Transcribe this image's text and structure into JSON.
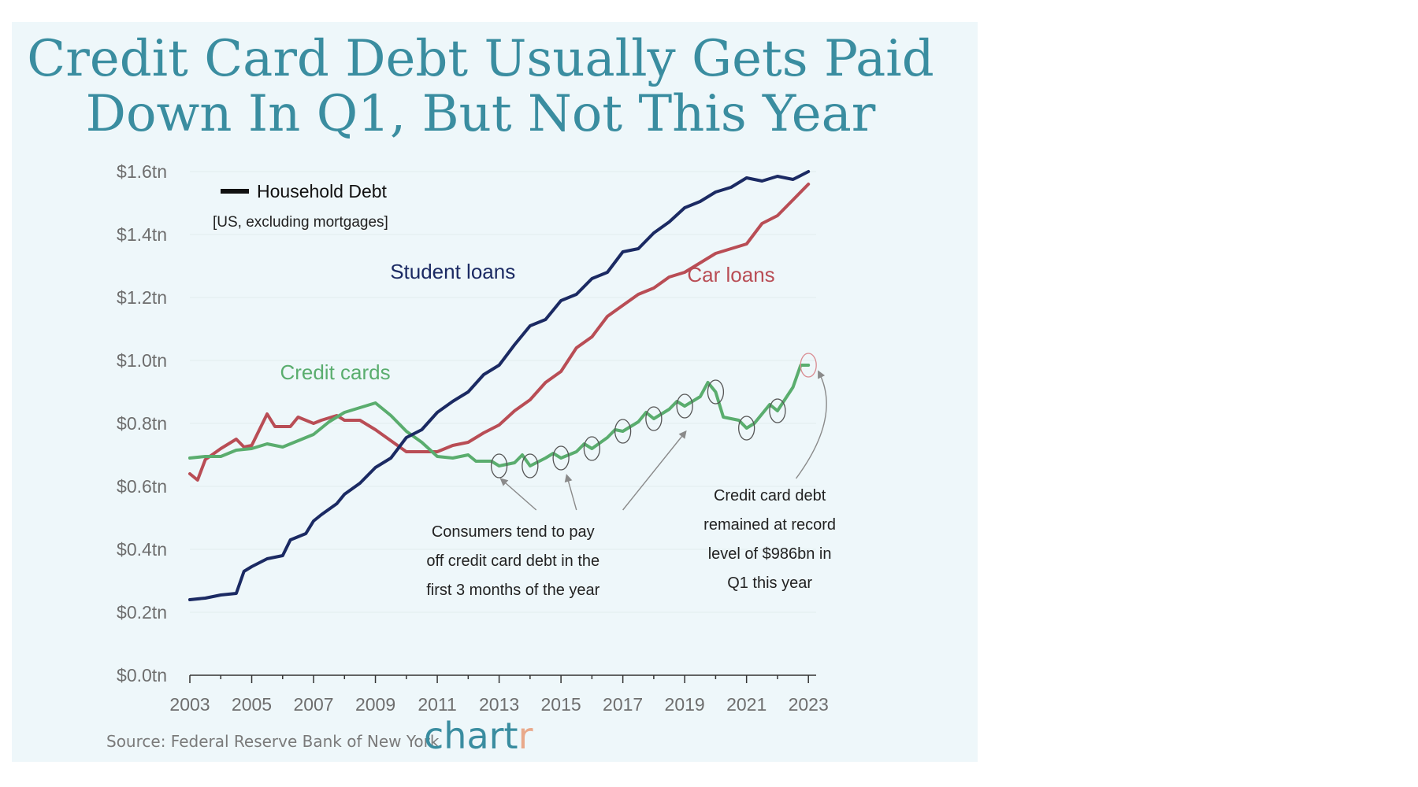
{
  "title": {
    "line1": "Credit Card Debt Usually Gets Paid",
    "line2": "Down In Q1, But Not This Year"
  },
  "footer": {
    "source": "Source: Federal Reserve Bank of New York",
    "brand_main": "chart",
    "brand_accent": "r"
  },
  "colors": {
    "background": "#eef7fa",
    "title": "#3a8da0",
    "student_loans": "#1b2a63",
    "car_loans": "#b94d55",
    "credit_cards": "#5aad6e",
    "grid": "#e3ecef"
  },
  "chart_data": {
    "type": "line",
    "legend": {
      "title": "Household Debt",
      "subtitle": "[US, excluding mortgages]",
      "placement": "top-left"
    },
    "ylim": [
      0,
      1.6
    ],
    "xlim": [
      2003,
      2023.25
    ],
    "y_ticks": [
      {
        "value": 0.0,
        "label": "$0.0tn"
      },
      {
        "value": 0.2,
        "label": "$0.2tn"
      },
      {
        "value": 0.4,
        "label": "$0.4tn"
      },
      {
        "value": 0.6,
        "label": "$0.6tn"
      },
      {
        "value": 0.8,
        "label": "$0.8tn"
      },
      {
        "value": 1.0,
        "label": "$1.0tn"
      },
      {
        "value": 1.2,
        "label": "$1.2tn"
      },
      {
        "value": 1.4,
        "label": "$1.4tn"
      },
      {
        "value": 1.6,
        "label": "$1.6tn"
      }
    ],
    "x_ticks": [
      "2003",
      "2005",
      "2007",
      "2009",
      "2011",
      "2013",
      "2015",
      "2017",
      "2019",
      "2021",
      "2023"
    ],
    "grid": true,
    "series": [
      {
        "name": "Student loans",
        "color": "#1b2a63",
        "points": [
          [
            2003,
            0.24
          ],
          [
            2003.5,
            0.245
          ],
          [
            2004,
            0.255
          ],
          [
            2004.5,
            0.26
          ],
          [
            2004.75,
            0.33
          ],
          [
            2005,
            0.345
          ],
          [
            2005.5,
            0.37
          ],
          [
            2006,
            0.38
          ],
          [
            2006.25,
            0.43
          ],
          [
            2006.75,
            0.45
          ],
          [
            2007,
            0.49
          ],
          [
            2007.25,
            0.51
          ],
          [
            2007.75,
            0.545
          ],
          [
            2008,
            0.575
          ],
          [
            2008.5,
            0.61
          ],
          [
            2009,
            0.66
          ],
          [
            2009.5,
            0.69
          ],
          [
            2010,
            0.755
          ],
          [
            2010.5,
            0.78
          ],
          [
            2011,
            0.835
          ],
          [
            2011.5,
            0.87
          ],
          [
            2012,
            0.9
          ],
          [
            2012.5,
            0.955
          ],
          [
            2013,
            0.985
          ],
          [
            2013.5,
            1.05
          ],
          [
            2014,
            1.11
          ],
          [
            2014.5,
            1.13
          ],
          [
            2015,
            1.19
          ],
          [
            2015.5,
            1.21
          ],
          [
            2016,
            1.26
          ],
          [
            2016.5,
            1.28
          ],
          [
            2017,
            1.345
          ],
          [
            2017.5,
            1.355
          ],
          [
            2018,
            1.405
          ],
          [
            2018.5,
            1.44
          ],
          [
            2019,
            1.485
          ],
          [
            2019.5,
            1.505
          ],
          [
            2020,
            1.535
          ],
          [
            2020.5,
            1.55
          ],
          [
            2021,
            1.58
          ],
          [
            2021.5,
            1.57
          ],
          [
            2022,
            1.585
          ],
          [
            2022.5,
            1.575
          ],
          [
            2023,
            1.6
          ]
        ]
      },
      {
        "name": "Car loans",
        "color": "#b94d55",
        "points": [
          [
            2003,
            0.64
          ],
          [
            2003.25,
            0.62
          ],
          [
            2003.5,
            0.685
          ],
          [
            2004,
            0.72
          ],
          [
            2004.5,
            0.75
          ],
          [
            2004.75,
            0.725
          ],
          [
            2005,
            0.73
          ],
          [
            2005.5,
            0.83
          ],
          [
            2005.75,
            0.79
          ],
          [
            2006.25,
            0.79
          ],
          [
            2006.5,
            0.82
          ],
          [
            2007,
            0.8
          ],
          [
            2007.25,
            0.81
          ],
          [
            2007.75,
            0.825
          ],
          [
            2008,
            0.81
          ],
          [
            2008.5,
            0.81
          ],
          [
            2009,
            0.78
          ],
          [
            2009.5,
            0.745
          ],
          [
            2010,
            0.71
          ],
          [
            2010.5,
            0.71
          ],
          [
            2011,
            0.71
          ],
          [
            2011.5,
            0.73
          ],
          [
            2012,
            0.74
          ],
          [
            2012.5,
            0.77
          ],
          [
            2013,
            0.795
          ],
          [
            2013.5,
            0.84
          ],
          [
            2014,
            0.875
          ],
          [
            2014.5,
            0.93
          ],
          [
            2015,
            0.965
          ],
          [
            2015.5,
            1.04
          ],
          [
            2016,
            1.075
          ],
          [
            2016.5,
            1.14
          ],
          [
            2017,
            1.175
          ],
          [
            2017.5,
            1.21
          ],
          [
            2018,
            1.23
          ],
          [
            2018.5,
            1.265
          ],
          [
            2019,
            1.28
          ],
          [
            2019.5,
            1.31
          ],
          [
            2020,
            1.34
          ],
          [
            2020.5,
            1.355
          ],
          [
            2021,
            1.37
          ],
          [
            2021.5,
            1.435
          ],
          [
            2022,
            1.46
          ],
          [
            2022.5,
            1.51
          ],
          [
            2023,
            1.56
          ]
        ]
      },
      {
        "name": "Credit cards",
        "color": "#5aad6e",
        "points": [
          [
            2003,
            0.69
          ],
          [
            2003.5,
            0.695
          ],
          [
            2004,
            0.695
          ],
          [
            2004.5,
            0.715
          ],
          [
            2005,
            0.72
          ],
          [
            2005.5,
            0.735
          ],
          [
            2006,
            0.725
          ],
          [
            2006.5,
            0.745
          ],
          [
            2007,
            0.765
          ],
          [
            2007.5,
            0.805
          ],
          [
            2008,
            0.835
          ],
          [
            2008.5,
            0.85
          ],
          [
            2009,
            0.865
          ],
          [
            2009.5,
            0.825
          ],
          [
            2010,
            0.775
          ],
          [
            2010.5,
            0.74
          ],
          [
            2011,
            0.695
          ],
          [
            2011.5,
            0.69
          ],
          [
            2012,
            0.7
          ],
          [
            2012.25,
            0.68
          ],
          [
            2012.75,
            0.68
          ],
          [
            2013,
            0.665
          ],
          [
            2013.5,
            0.675
          ],
          [
            2013.75,
            0.7
          ],
          [
            2014,
            0.665
          ],
          [
            2014.5,
            0.69
          ],
          [
            2014.75,
            0.705
          ],
          [
            2015,
            0.69
          ],
          [
            2015.5,
            0.71
          ],
          [
            2015.75,
            0.735
          ],
          [
            2016,
            0.72
          ],
          [
            2016.5,
            0.755
          ],
          [
            2016.75,
            0.78
          ],
          [
            2017,
            0.775
          ],
          [
            2017.5,
            0.805
          ],
          [
            2017.75,
            0.835
          ],
          [
            2018,
            0.815
          ],
          [
            2018.5,
            0.845
          ],
          [
            2018.75,
            0.87
          ],
          [
            2019,
            0.855
          ],
          [
            2019.5,
            0.885
          ],
          [
            2019.75,
            0.93
          ],
          [
            2020,
            0.9
          ],
          [
            2020.25,
            0.82
          ],
          [
            2020.75,
            0.81
          ],
          [
            2021,
            0.785
          ],
          [
            2021.25,
            0.8
          ],
          [
            2021.75,
            0.86
          ],
          [
            2022,
            0.84
          ],
          [
            2022.5,
            0.915
          ],
          [
            2022.75,
            0.985
          ],
          [
            2023,
            0.985
          ]
        ]
      }
    ],
    "series_labels": [
      {
        "text": "Student loans",
        "series": "Student loans",
        "x": 2011.5,
        "y": 1.26
      },
      {
        "text": "Car loans",
        "series": "Car loans",
        "x": 2020.5,
        "y": 1.25
      },
      {
        "text": "Credit cards",
        "series": "Credit cards",
        "x": 2007.7,
        "y": 0.94
      }
    ],
    "q1_markers": [
      {
        "x": 2013,
        "y": 0.665
      },
      {
        "x": 2014,
        "y": 0.665
      },
      {
        "x": 2015,
        "y": 0.69
      },
      {
        "x": 2016,
        "y": 0.72
      },
      {
        "x": 2017,
        "y": 0.775
      },
      {
        "x": 2018,
        "y": 0.815
      },
      {
        "x": 2019,
        "y": 0.855
      },
      {
        "x": 2020,
        "y": 0.9
      },
      {
        "x": 2021,
        "y": 0.785
      },
      {
        "x": 2022,
        "y": 0.84
      },
      {
        "x": 2023,
        "y": 0.985,
        "highlight": true
      }
    ],
    "annotations": [
      {
        "lines": [
          "Consumers tend to pay",
          "off credit card debt in the",
          "first 3 months of the year"
        ],
        "x": 2013.45,
        "y": 0.44
      },
      {
        "lines": [
          "Credit card debt",
          "remained at record",
          "level of $986bn in",
          "Q1 this year"
        ],
        "x": 2021.75,
        "y": 0.555
      }
    ]
  }
}
